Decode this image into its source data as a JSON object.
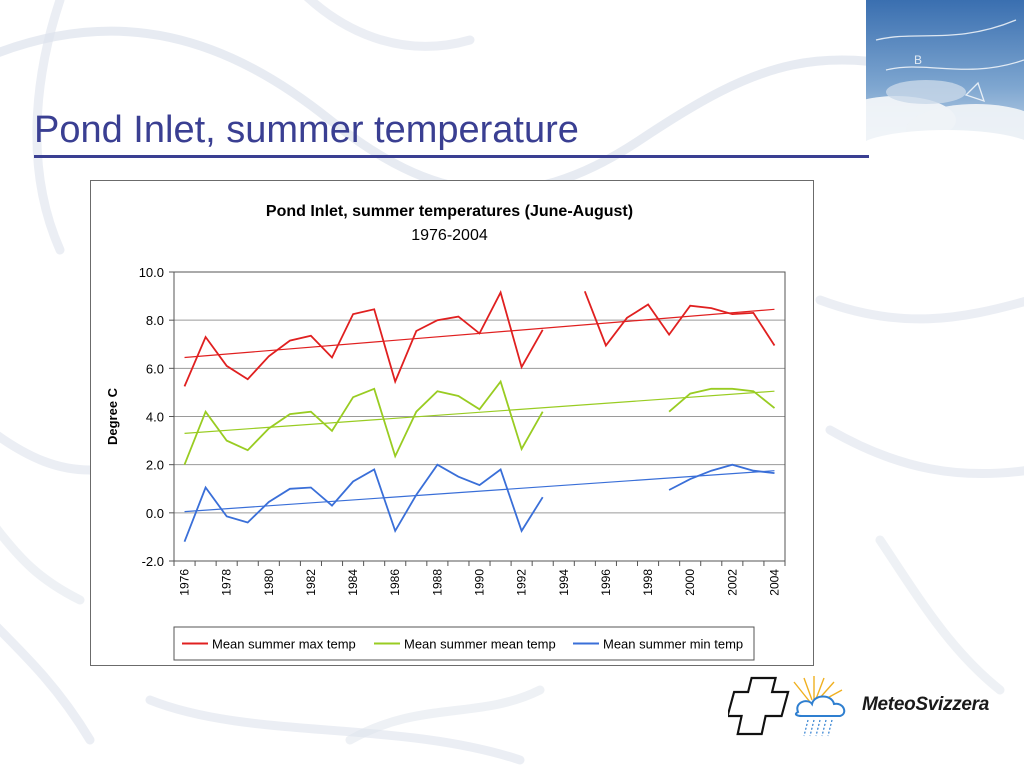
{
  "slide": {
    "title": "Pond Inlet, summer temperature",
    "accent_color": "#3a3f92"
  },
  "logo": {
    "text": "MeteoSvizzera",
    "icon": "swiss-cross-sun-cloud-rain-icon"
  },
  "chart_data": {
    "type": "line",
    "title": "Pond Inlet, summer temperatures (June-August)",
    "subtitle": "1976-2004",
    "xlabel": "",
    "ylabel": "Degree C",
    "ylim": [
      -2.0,
      10.0
    ],
    "yticks": [
      "10.0",
      "8.0",
      "6.0",
      "4.0",
      "2.0",
      "0.0",
      "-2.0"
    ],
    "xticks": [
      "1976",
      "1978",
      "1980",
      "1982",
      "1984",
      "1986",
      "1988",
      "1990",
      "1992",
      "1994",
      "1996",
      "1998",
      "2000",
      "2002",
      "2004"
    ],
    "grid": true,
    "legend_position": "bottom",
    "x": [
      1976,
      1977,
      1978,
      1979,
      1980,
      1981,
      1982,
      1983,
      1984,
      1985,
      1986,
      1987,
      1988,
      1989,
      1990,
      1991,
      1992,
      1993,
      1994,
      1995,
      1996,
      1997,
      1998,
      1999,
      2000,
      2001,
      2002,
      2003,
      2004
    ],
    "series": [
      {
        "name": "Mean summer max  temp",
        "color": "#e02020",
        "values": [
          5.25,
          7.3,
          6.1,
          5.55,
          6.5,
          7.15,
          7.35,
          6.45,
          8.25,
          8.45,
          5.45,
          7.55,
          8.0,
          8.15,
          7.45,
          9.15,
          6.05,
          7.6,
          null,
          9.2,
          6.95,
          8.1,
          8.65,
          7.4,
          8.6,
          8.5,
          8.25,
          8.3,
          6.95
        ],
        "trend": [
          6.45,
          8.45
        ]
      },
      {
        "name": "Mean summer mean temp",
        "color": "#99cc22",
        "values": [
          2.0,
          4.2,
          3.0,
          2.6,
          3.5,
          4.1,
          4.2,
          3.4,
          4.8,
          5.15,
          2.35,
          4.2,
          5.05,
          4.85,
          4.3,
          5.45,
          2.65,
          4.2,
          null,
          null,
          null,
          null,
          null,
          4.2,
          4.95,
          5.15,
          5.15,
          5.05,
          4.35
        ],
        "trend": [
          3.3,
          5.05
        ]
      },
      {
        "name": "Mean summer min temp",
        "color": "#3a6fd8",
        "values": [
          -1.2,
          1.05,
          -0.15,
          -0.4,
          0.45,
          1.0,
          1.05,
          0.3,
          1.3,
          1.8,
          -0.75,
          0.75,
          2.0,
          1.5,
          1.15,
          1.8,
          -0.75,
          0.65,
          null,
          null,
          null,
          null,
          null,
          0.95,
          1.4,
          1.75,
          2.0,
          1.75,
          1.65
        ],
        "trend": [
          0.05,
          1.75
        ]
      }
    ]
  }
}
